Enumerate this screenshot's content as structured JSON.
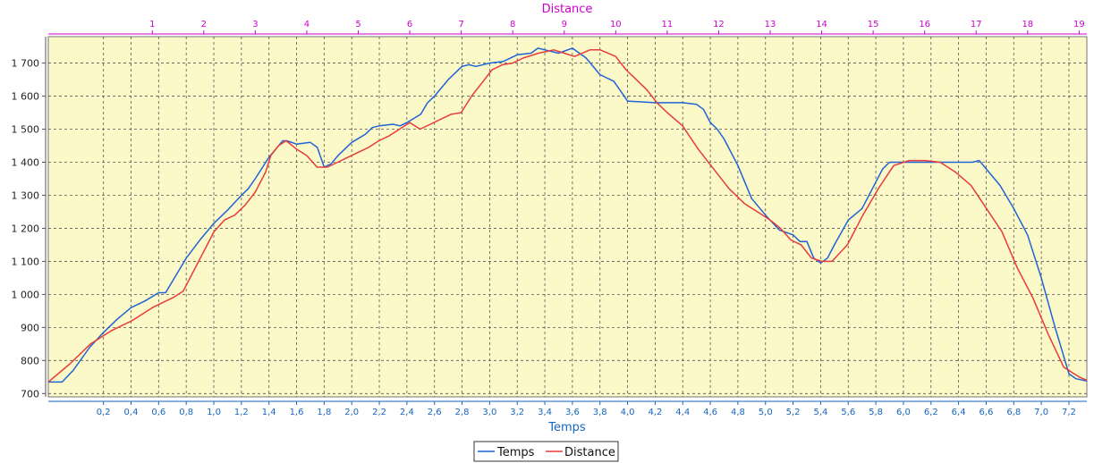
{
  "chart_data": {
    "type": "line",
    "title": "",
    "xlabel": "Temps",
    "x2label": "Distance",
    "ylabel": "",
    "xlim": [
      -0.2,
      7.33
    ],
    "x2lim": [
      -1.02,
      19.15
    ],
    "ylim": [
      690,
      1780
    ],
    "x_ticks": [
      "0,2",
      "0,4",
      "0,6",
      "0,8",
      "1,0",
      "1,2",
      "1,4",
      "1,6",
      "1,8",
      "2,0",
      "2,2",
      "2,4",
      "2,6",
      "2,8",
      "3,0",
      "3,2",
      "3,4",
      "3,6",
      "3,8",
      "4,0",
      "4,2",
      "4,4",
      "4,6",
      "4,8",
      "5,0",
      "5,2",
      "5,4",
      "5,6",
      "5,8",
      "6,0",
      "6,2",
      "6,4",
      "6,6",
      "6,8",
      "7,0",
      "7,2"
    ],
    "x2_ticks": [
      "1",
      "2",
      "3",
      "4",
      "5",
      "6",
      "7",
      "8",
      "9",
      "10",
      "11",
      "12",
      "13",
      "14",
      "15",
      "16",
      "17",
      "18",
      "19"
    ],
    "y_ticks": [
      "700",
      "800",
      "900",
      "1 000",
      "1 100",
      "1 200",
      "1 300",
      "1 400",
      "1 500",
      "1 600",
      "1 700"
    ],
    "grid": true,
    "legend": "bottom-center",
    "colors": {
      "plot_bg": "#fbf9c8",
      "grid": "#555555",
      "temps": "#1f63d6",
      "distance": "#e83b3b",
      "top_axis": "#cc00cc",
      "bottom_axis": "#1565c0"
    },
    "series": [
      {
        "name": "Temps",
        "axis": "bottom",
        "x": [
          -0.2,
          -0.1,
          -0.02,
          0.1,
          0.2,
          0.3,
          0.4,
          0.5,
          0.6,
          0.65,
          0.7,
          0.8,
          0.9,
          1.0,
          1.1,
          1.2,
          1.25,
          1.3,
          1.4,
          1.45,
          1.5,
          1.53,
          1.6,
          1.7,
          1.75,
          1.8,
          1.85,
          1.9,
          2.0,
          2.1,
          2.15,
          2.2,
          2.3,
          2.35,
          2.4,
          2.5,
          2.55,
          2.6,
          2.7,
          2.8,
          2.85,
          2.9,
          3.0,
          3.1,
          3.2,
          3.3,
          3.35,
          3.4,
          3.45,
          3.5,
          3.6,
          3.7,
          3.8,
          3.9,
          4.0,
          4.2,
          4.3,
          4.4,
          4.5,
          4.55,
          4.6,
          4.65,
          4.7,
          4.8,
          4.9,
          5.0,
          5.1,
          5.2,
          5.25,
          5.3,
          5.35,
          5.4,
          5.45,
          5.5,
          5.6,
          5.7,
          5.8,
          5.85,
          5.9,
          6.0,
          6.2,
          6.4,
          6.5,
          6.55,
          6.6,
          6.7,
          6.8,
          6.9,
          7.0,
          7.1,
          7.2,
          7.25,
          7.33
        ],
        "y": [
          735,
          735,
          770,
          840,
          885,
          925,
          960,
          980,
          1005,
          1005,
          1040,
          1110,
          1165,
          1215,
          1255,
          1300,
          1320,
          1350,
          1415,
          1440,
          1465,
          1465,
          1455,
          1460,
          1445,
          1385,
          1395,
          1420,
          1460,
          1485,
          1505,
          1510,
          1515,
          1510,
          1520,
          1545,
          1580,
          1600,
          1650,
          1690,
          1695,
          1690,
          1700,
          1705,
          1725,
          1730,
          1745,
          1740,
          1735,
          1730,
          1745,
          1715,
          1665,
          1645,
          1585,
          1580,
          1580,
          1580,
          1575,
          1560,
          1520,
          1500,
          1470,
          1390,
          1290,
          1240,
          1195,
          1180,
          1160,
          1160,
          1110,
          1095,
          1110,
          1150,
          1225,
          1260,
          1340,
          1380,
          1400,
          1400,
          1400,
          1400,
          1400,
          1405,
          1380,
          1330,
          1260,
          1180,
          1050,
          900,
          760,
          745,
          738
        ]
      },
      {
        "name": "Distance",
        "axis": "top",
        "x": [
          -1.02,
          -0.6,
          -0.2,
          0.2,
          0.6,
          0.8,
          1.0,
          1.2,
          1.4,
          1.6,
          1.8,
          2.0,
          2.2,
          2.4,
          2.6,
          2.8,
          3.0,
          3.2,
          3.3,
          3.45,
          3.6,
          3.8,
          4.0,
          4.2,
          4.4,
          4.6,
          4.8,
          5.0,
          5.2,
          5.4,
          5.6,
          5.8,
          6.0,
          6.2,
          6.4,
          6.6,
          6.8,
          7.0,
          7.2,
          7.4,
          7.6,
          7.8,
          8.0,
          8.2,
          8.5,
          8.8,
          9.0,
          9.2,
          9.5,
          9.7,
          10.0,
          10.2,
          10.4,
          10.6,
          10.8,
          11.0,
          11.3,
          11.6,
          11.9,
          12.2,
          12.5,
          12.8,
          13.0,
          13.2,
          13.4,
          13.6,
          13.8,
          14.0,
          14.2,
          14.5,
          14.8,
          15.1,
          15.4,
          15.7,
          16.0,
          16.3,
          16.6,
          16.9,
          17.2,
          17.5,
          17.8,
          18.1,
          18.4,
          18.7,
          19.0,
          19.15
        ],
        "y": [
          735,
          790,
          850,
          890,
          920,
          940,
          960,
          975,
          990,
          1010,
          1070,
          1130,
          1190,
          1225,
          1240,
          1270,
          1310,
          1370,
          1420,
          1450,
          1465,
          1440,
          1420,
          1385,
          1385,
          1400,
          1415,
          1430,
          1445,
          1465,
          1480,
          1500,
          1520,
          1500,
          1515,
          1530,
          1545,
          1550,
          1600,
          1640,
          1680,
          1695,
          1700,
          1715,
          1730,
          1740,
          1730,
          1720,
          1740,
          1740,
          1720,
          1680,
          1650,
          1620,
          1580,
          1550,
          1510,
          1440,
          1380,
          1320,
          1275,
          1245,
          1225,
          1200,
          1165,
          1150,
          1110,
          1100,
          1100,
          1150,
          1240,
          1320,
          1390,
          1405,
          1405,
          1400,
          1370,
          1330,
          1260,
          1190,
          1080,
          990,
          880,
          780,
          750,
          740
        ]
      }
    ]
  }
}
